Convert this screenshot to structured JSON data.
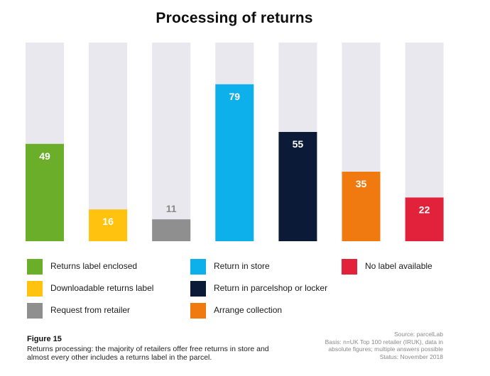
{
  "chart_data": {
    "type": "bar",
    "title": "Processing of returns",
    "ylim": [
      0,
      100
    ],
    "xlabel": "",
    "ylabel": "",
    "categories": [
      "Returns label enclosed",
      "Downloadable returns label",
      "Request from retailer",
      "Return in store",
      "Return in parcelshop or locker",
      "Arrange collection",
      "No label available"
    ],
    "values": [
      49,
      16,
      11,
      79,
      55,
      35,
      22
    ],
    "value_labels": [
      "49",
      "16",
      "11",
      "79",
      "55",
      "35",
      "22"
    ],
    "colors": [
      "#6aae2a",
      "#ffc20e",
      "#8f8f8f",
      "#0db0ea",
      "#0b1a36",
      "#f07a10",
      "#e2213a"
    ],
    "background_color": "#e8e8ee"
  },
  "legend": [
    {
      "label": "Returns label enclosed",
      "color": "#6aae2a"
    },
    {
      "label": "Return in store",
      "color": "#0db0ea"
    },
    {
      "label": "No label available",
      "color": "#e2213a"
    },
    {
      "label": "Downloadable returns label",
      "color": "#ffc20e"
    },
    {
      "label": "Return in parcelshop or locker",
      "color": "#0b1a36"
    },
    {
      "label": "Request from retailer",
      "color": "#8f8f8f"
    },
    {
      "label": "Arrange collection",
      "color": "#f07a10"
    }
  ],
  "figure": {
    "label": "Figure 15",
    "caption": "Returns processing: the majority of retailers offer free returns in store and almost every other includes a returns label in the parcel."
  },
  "source": {
    "line1": "Source: parcelLab",
    "line2": "Basis: n=UK Top 100 retailer (IRUK), data in",
    "line3": "absolute figures; multiple answers possible",
    "line4": "Status: November 2018"
  }
}
